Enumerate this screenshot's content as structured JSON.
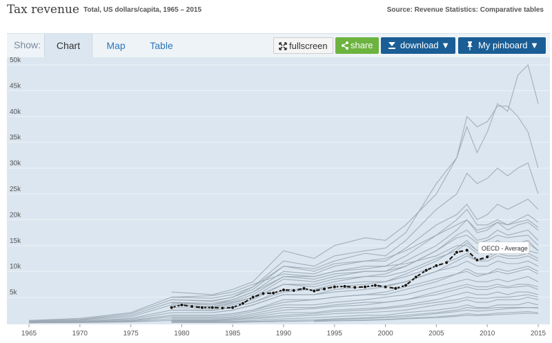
{
  "header": {
    "title": "Tax revenue",
    "subtitle": "Total, US dollars/capita, 1965 – 2015",
    "source": "Source: Revenue Statistics: Comparative tables"
  },
  "toolbar": {
    "show_label": "Show:",
    "tabs": [
      {
        "label": "Chart",
        "active": true
      },
      {
        "label": "Map",
        "active": false
      },
      {
        "label": "Table",
        "active": false
      }
    ],
    "fullscreen_label": "fullscreen",
    "share_label": "share",
    "download_label": "download ▼",
    "pinboard_label": "My pinboard ▼"
  },
  "colors": {
    "background": "#dbe6f0",
    "series_gray": "#9aa7b3",
    "highlight": "#1a1a1a",
    "share_green": "#6db33f",
    "button_blue": "#1a5e95"
  },
  "chart_data": {
    "type": "line",
    "title": "Tax revenue",
    "subtitle": "Total, US dollars/capita, 1965 – 2015",
    "xlim": [
      1965,
      2015
    ],
    "ylim": [
      0,
      50000
    ],
    "x_ticks": [
      "1965",
      "1970",
      "1975",
      "1980",
      "1985",
      "1990",
      "1995",
      "2000",
      "2005",
      "2010",
      "2015"
    ],
    "y_ticks": [
      "5k",
      "10k",
      "15k",
      "20k",
      "25k",
      "30k",
      "35k",
      "40k",
      "45k",
      "50k"
    ],
    "y_tick_values": [
      5000,
      10000,
      15000,
      20000,
      25000,
      30000,
      35000,
      40000,
      45000,
      50000
    ],
    "grid": true,
    "highlight": {
      "name": "OECD - Average",
      "x": [
        1979,
        1980,
        1981,
        1982,
        1983,
        1984,
        1985,
        1986,
        1987,
        1988,
        1989,
        1990,
        1991,
        1992,
        1993,
        1994,
        1995,
        1996,
        1997,
        1998,
        1999,
        2000,
        2001,
        2002,
        2003,
        2004,
        2005,
        2006,
        2007,
        2008,
        2009,
        2010,
        2011,
        2012,
        2013,
        2014
      ],
      "y": [
        3000,
        3500,
        3200,
        3000,
        3000,
        2900,
        3000,
        3800,
        5000,
        5700,
        5800,
        6400,
        6300,
        6700,
        6200,
        6600,
        7000,
        7100,
        6900,
        7000,
        7300,
        7000,
        6700,
        7300,
        8900,
        10200,
        11100,
        11700,
        13700,
        14100,
        12200,
        12800,
        14500,
        14200,
        14100,
        14900
      ]
    },
    "series_x": [
      1965,
      1970,
      1975,
      1979,
      1983,
      1985,
      1987,
      1990,
      1993,
      1995,
      1998,
      2000,
      2002,
      2005,
      2007,
      2008,
      2009,
      2010,
      2011,
      2012,
      2013,
      2014,
      2015
    ],
    "series": [
      {
        "values": [
          null,
          null,
          null,
          6000,
          5500,
          6500,
          8000,
          14000,
          12500,
          15000,
          16500,
          16000,
          19000,
          25000,
          32000,
          38000,
          33000,
          37000,
          42500,
          41000,
          48000,
          50000,
          42500
        ]
      },
      {
        "values": [
          null,
          null,
          null,
          5000,
          4800,
          5500,
          7000,
          12000,
          11000,
          13000,
          14000,
          14500,
          17500,
          27000,
          32000,
          40000,
          38000,
          39000,
          42000,
          42000,
          40000,
          37000,
          30000
        ]
      },
      {
        "values": [
          null,
          null,
          null,
          4500,
          4200,
          5000,
          6500,
          11000,
          10500,
          12000,
          13500,
          13000,
          16000,
          22000,
          25000,
          29000,
          27000,
          28000,
          30000,
          28500,
          30000,
          31000,
          25000
        ]
      },
      {
        "values": [
          null,
          null,
          null,
          4000,
          3800,
          4500,
          6000,
          10000,
          9500,
          11000,
          12000,
          12000,
          14500,
          19000,
          21000,
          23000,
          20000,
          21000,
          23000,
          22000,
          23000,
          24000,
          22000
        ]
      },
      {
        "values": [
          null,
          null,
          null,
          3800,
          3500,
          4200,
          5500,
          9000,
          9000,
          10000,
          11000,
          11000,
          13000,
          17000,
          20000,
          22000,
          19000,
          19000,
          20000,
          19000,
          20000,
          21000,
          19500
        ]
      },
      {
        "values": [
          null,
          null,
          null,
          3500,
          3200,
          4000,
          5000,
          8500,
          8000,
          9000,
          10000,
          10000,
          12000,
          15000,
          18000,
          20000,
          17500,
          18000,
          19500,
          18000,
          19000,
          19500,
          18000
        ]
      },
      {
        "values": [
          null,
          null,
          null,
          3000,
          2800,
          3500,
          4500,
          7500,
          7000,
          8000,
          9000,
          9500,
          11000,
          14000,
          17000,
          18000,
          16000,
          16500,
          18000,
          17000,
          17500,
          18000,
          16000
        ]
      },
      {
        "values": [
          null,
          null,
          null,
          2500,
          2400,
          3000,
          4000,
          6500,
          6500,
          7000,
          7500,
          8000,
          9500,
          12000,
          14500,
          16000,
          14000,
          14500,
          16000,
          15000,
          15500,
          16000,
          14000
        ]
      },
      {
        "values": [
          null,
          null,
          null,
          2000,
          2000,
          2500,
          3500,
          5500,
          5500,
          6000,
          6500,
          7000,
          8000,
          10000,
          12000,
          13000,
          12000,
          12000,
          13000,
          12500,
          12500,
          13000,
          12000
        ]
      },
      {
        "values": [
          null,
          null,
          null,
          1500,
          1500,
          1800,
          2500,
          4500,
          4500,
          5000,
          5500,
          5500,
          6500,
          8000,
          9500,
          10500,
          9500,
          9500,
          10500,
          10000,
          10500,
          11000,
          10000
        ]
      },
      {
        "values": [
          null,
          null,
          null,
          1000,
          1000,
          1200,
          1800,
          3000,
          3000,
          3500,
          4000,
          4000,
          4500,
          6000,
          7000,
          7500,
          7000,
          7000,
          7500,
          7000,
          7500,
          7500,
          7000
        ]
      },
      {
        "values": [
          null,
          null,
          null,
          600,
          600,
          800,
          1200,
          2000,
          2000,
          2500,
          2800,
          3000,
          3500,
          4500,
          5500,
          6000,
          5500,
          5500,
          6000,
          5500,
          6000,
          6000,
          5500
        ]
      },
      {
        "values": [
          null,
          null,
          null,
          400,
          400,
          500,
          800,
          1200,
          1500,
          1800,
          2000,
          2200,
          2500,
          3500,
          4000,
          4500,
          4000,
          4000,
          4500,
          4500,
          4500,
          5000,
          4500
        ]
      },
      {
        "values": [
          null,
          null,
          null,
          300,
          300,
          300,
          500,
          800,
          1000,
          1200,
          1500,
          1500,
          2000,
          2500,
          3000,
          3500,
          3000,
          3000,
          3500,
          3500,
          3500,
          4000,
          3500
        ]
      },
      {
        "values": [
          null,
          null,
          null,
          200,
          200,
          200,
          300,
          500,
          600,
          800,
          1000,
          1200,
          1500,
          2000,
          2500,
          3000,
          2800,
          2800,
          3000,
          3000,
          3000,
          3000,
          3000
        ]
      },
      {
        "values": [
          null,
          null,
          null,
          null,
          null,
          null,
          null,
          null,
          500,
          700,
          900,
          1000,
          1200,
          1800,
          2200,
          2500,
          2300,
          2400,
          2600,
          2800,
          2900,
          3000,
          2900
        ]
      },
      {
        "values": [
          null,
          null,
          null,
          100,
          100,
          100,
          200,
          300,
          400,
          500,
          600,
          700,
          900,
          1200,
          1500,
          1800,
          1600,
          1700,
          1900,
          2000,
          2100,
          2200,
          2000
        ]
      },
      {
        "values": [
          null,
          null,
          null,
          null,
          null,
          null,
          null,
          null,
          300,
          400,
          500,
          600,
          800,
          1000,
          1300,
          1500,
          1400,
          1500,
          1600,
          1700,
          1800,
          1900,
          1800
        ]
      },
      {
        "values": [
          500,
          900,
          2000,
          5000,
          5300,
          6000,
          7500,
          9500,
          9000,
          10000,
          10500,
          11000,
          11500,
          13000,
          15000,
          15000,
          13500,
          13500,
          14000,
          13500,
          13500,
          14000,
          13500
        ]
      },
      {
        "values": [
          400,
          700,
          1800,
          4500,
          4300,
          5000,
          7000,
          11000,
          10000,
          11500,
          12000,
          12500,
          14000,
          17000,
          19000,
          20000,
          18000,
          18500,
          19500,
          19000,
          19500,
          20000,
          18500
        ]
      },
      {
        "values": [
          300,
          600,
          1500,
          4000,
          3500,
          4500,
          6000,
          9000,
          8500,
          9500,
          10000,
          10000,
          11000,
          14000,
          16500,
          17000,
          15500,
          16000,
          17000,
          16500,
          16800,
          17000,
          15000
        ]
      },
      {
        "values": [
          200,
          500,
          1200,
          3500,
          3000,
          3800,
          5000,
          7500,
          7500,
          8500,
          9000,
          9000,
          10000,
          12500,
          14000,
          15500,
          14000,
          14500,
          15500,
          15000,
          15000,
          15500,
          14000
        ]
      },
      {
        "values": [
          150,
          350,
          900,
          2500,
          2500,
          3000,
          4000,
          6000,
          6500,
          7500,
          8000,
          8000,
          9000,
          11000,
          12500,
          13500,
          12000,
          12500,
          13500,
          13000,
          13000,
          13500,
          12500
        ]
      },
      {
        "values": [
          100,
          250,
          700,
          2000,
          2000,
          2500,
          3500,
          5500,
          5500,
          6500,
          7000,
          7200,
          8000,
          10000,
          11000,
          12000,
          11000,
          11000,
          12000,
          11500,
          11500,
          12000,
          11000
        ]
      },
      {
        "values": [
          80,
          200,
          500,
          1500,
          1500,
          1800,
          2500,
          4000,
          4500,
          5000,
          5500,
          6000,
          7000,
          8500,
          9500,
          10000,
          9000,
          9500,
          10000,
          9500,
          10000,
          10500,
          9500
        ]
      },
      {
        "values": [
          60,
          150,
          400,
          1200,
          1200,
          1500,
          2200,
          3500,
          3500,
          4000,
          4500,
          5000,
          5500,
          7000,
          8000,
          8500,
          8000,
          8000,
          8500,
          8000,
          8500,
          9000,
          8000
        ]
      },
      {
        "values": [
          50,
          100,
          300,
          800,
          800,
          1000,
          1500,
          2500,
          2800,
          3200,
          3500,
          4000,
          4500,
          5500,
          6500,
          7000,
          6500,
          6500,
          7000,
          6800,
          7000,
          7200,
          6500
        ]
      },
      {
        "values": [
          40,
          80,
          200,
          500,
          500,
          700,
          1000,
          1500,
          1800,
          2200,
          2500,
          2800,
          3200,
          4000,
          4500,
          5000,
          4800,
          4800,
          5000,
          5000,
          5200,
          5500,
          5000
        ]
      }
    ]
  }
}
